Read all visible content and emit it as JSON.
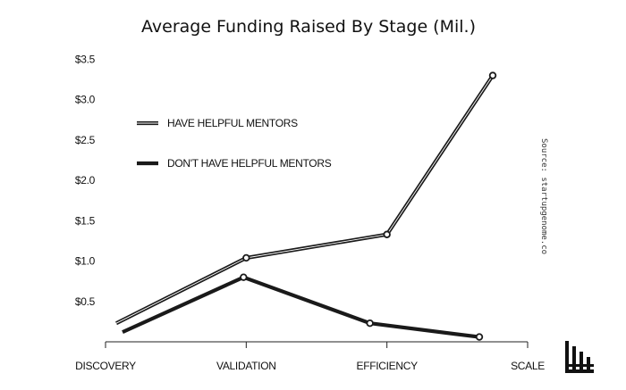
{
  "chart_data": {
    "type": "line",
    "title": "Average Funding Raised By Stage (Mil.)",
    "categories": [
      "DISCOVERY",
      "VALIDATION",
      "EFFICIENCY",
      "SCALE"
    ],
    "y_tick_labels": [
      "$0.5",
      "$1.0",
      "$1.5",
      "$2.0",
      "$2.5",
      "$3.0",
      "$3.5"
    ],
    "y_ticks": [
      0.5,
      1.0,
      1.5,
      2.0,
      2.5,
      3.0,
      3.5
    ],
    "ylim": [
      0,
      3.55
    ],
    "series": [
      {
        "name": "HAVE HELPFUL MENTORS",
        "points": [
          {
            "x": "DISCOVERY",
            "y": 0.23
          },
          {
            "x": "VALIDATION",
            "y": 1.04
          },
          {
            "x": "EFFICIENCY",
            "y": 1.33
          },
          {
            "x": "SCALE",
            "y": 3.3
          }
        ],
        "color": "#1a1a1a",
        "style": "double-line"
      },
      {
        "name": "DON'T HAVE HELPFUL MENTORS",
        "points": [
          {
            "x": "DISCOVERY",
            "y": 0.12
          },
          {
            "x": "VALIDATION",
            "y": 0.8
          },
          {
            "x": "EFFICIENCY",
            "y": 0.23
          },
          {
            "x": "SCALE",
            "y": 0.06
          }
        ],
        "color": "#1a1a1a",
        "style": "solid"
      }
    ],
    "legend_position": "top-left",
    "grid": false
  },
  "source_note": "Source: startupgenome.co",
  "logo_icon": "startup-genome-logo-icon"
}
